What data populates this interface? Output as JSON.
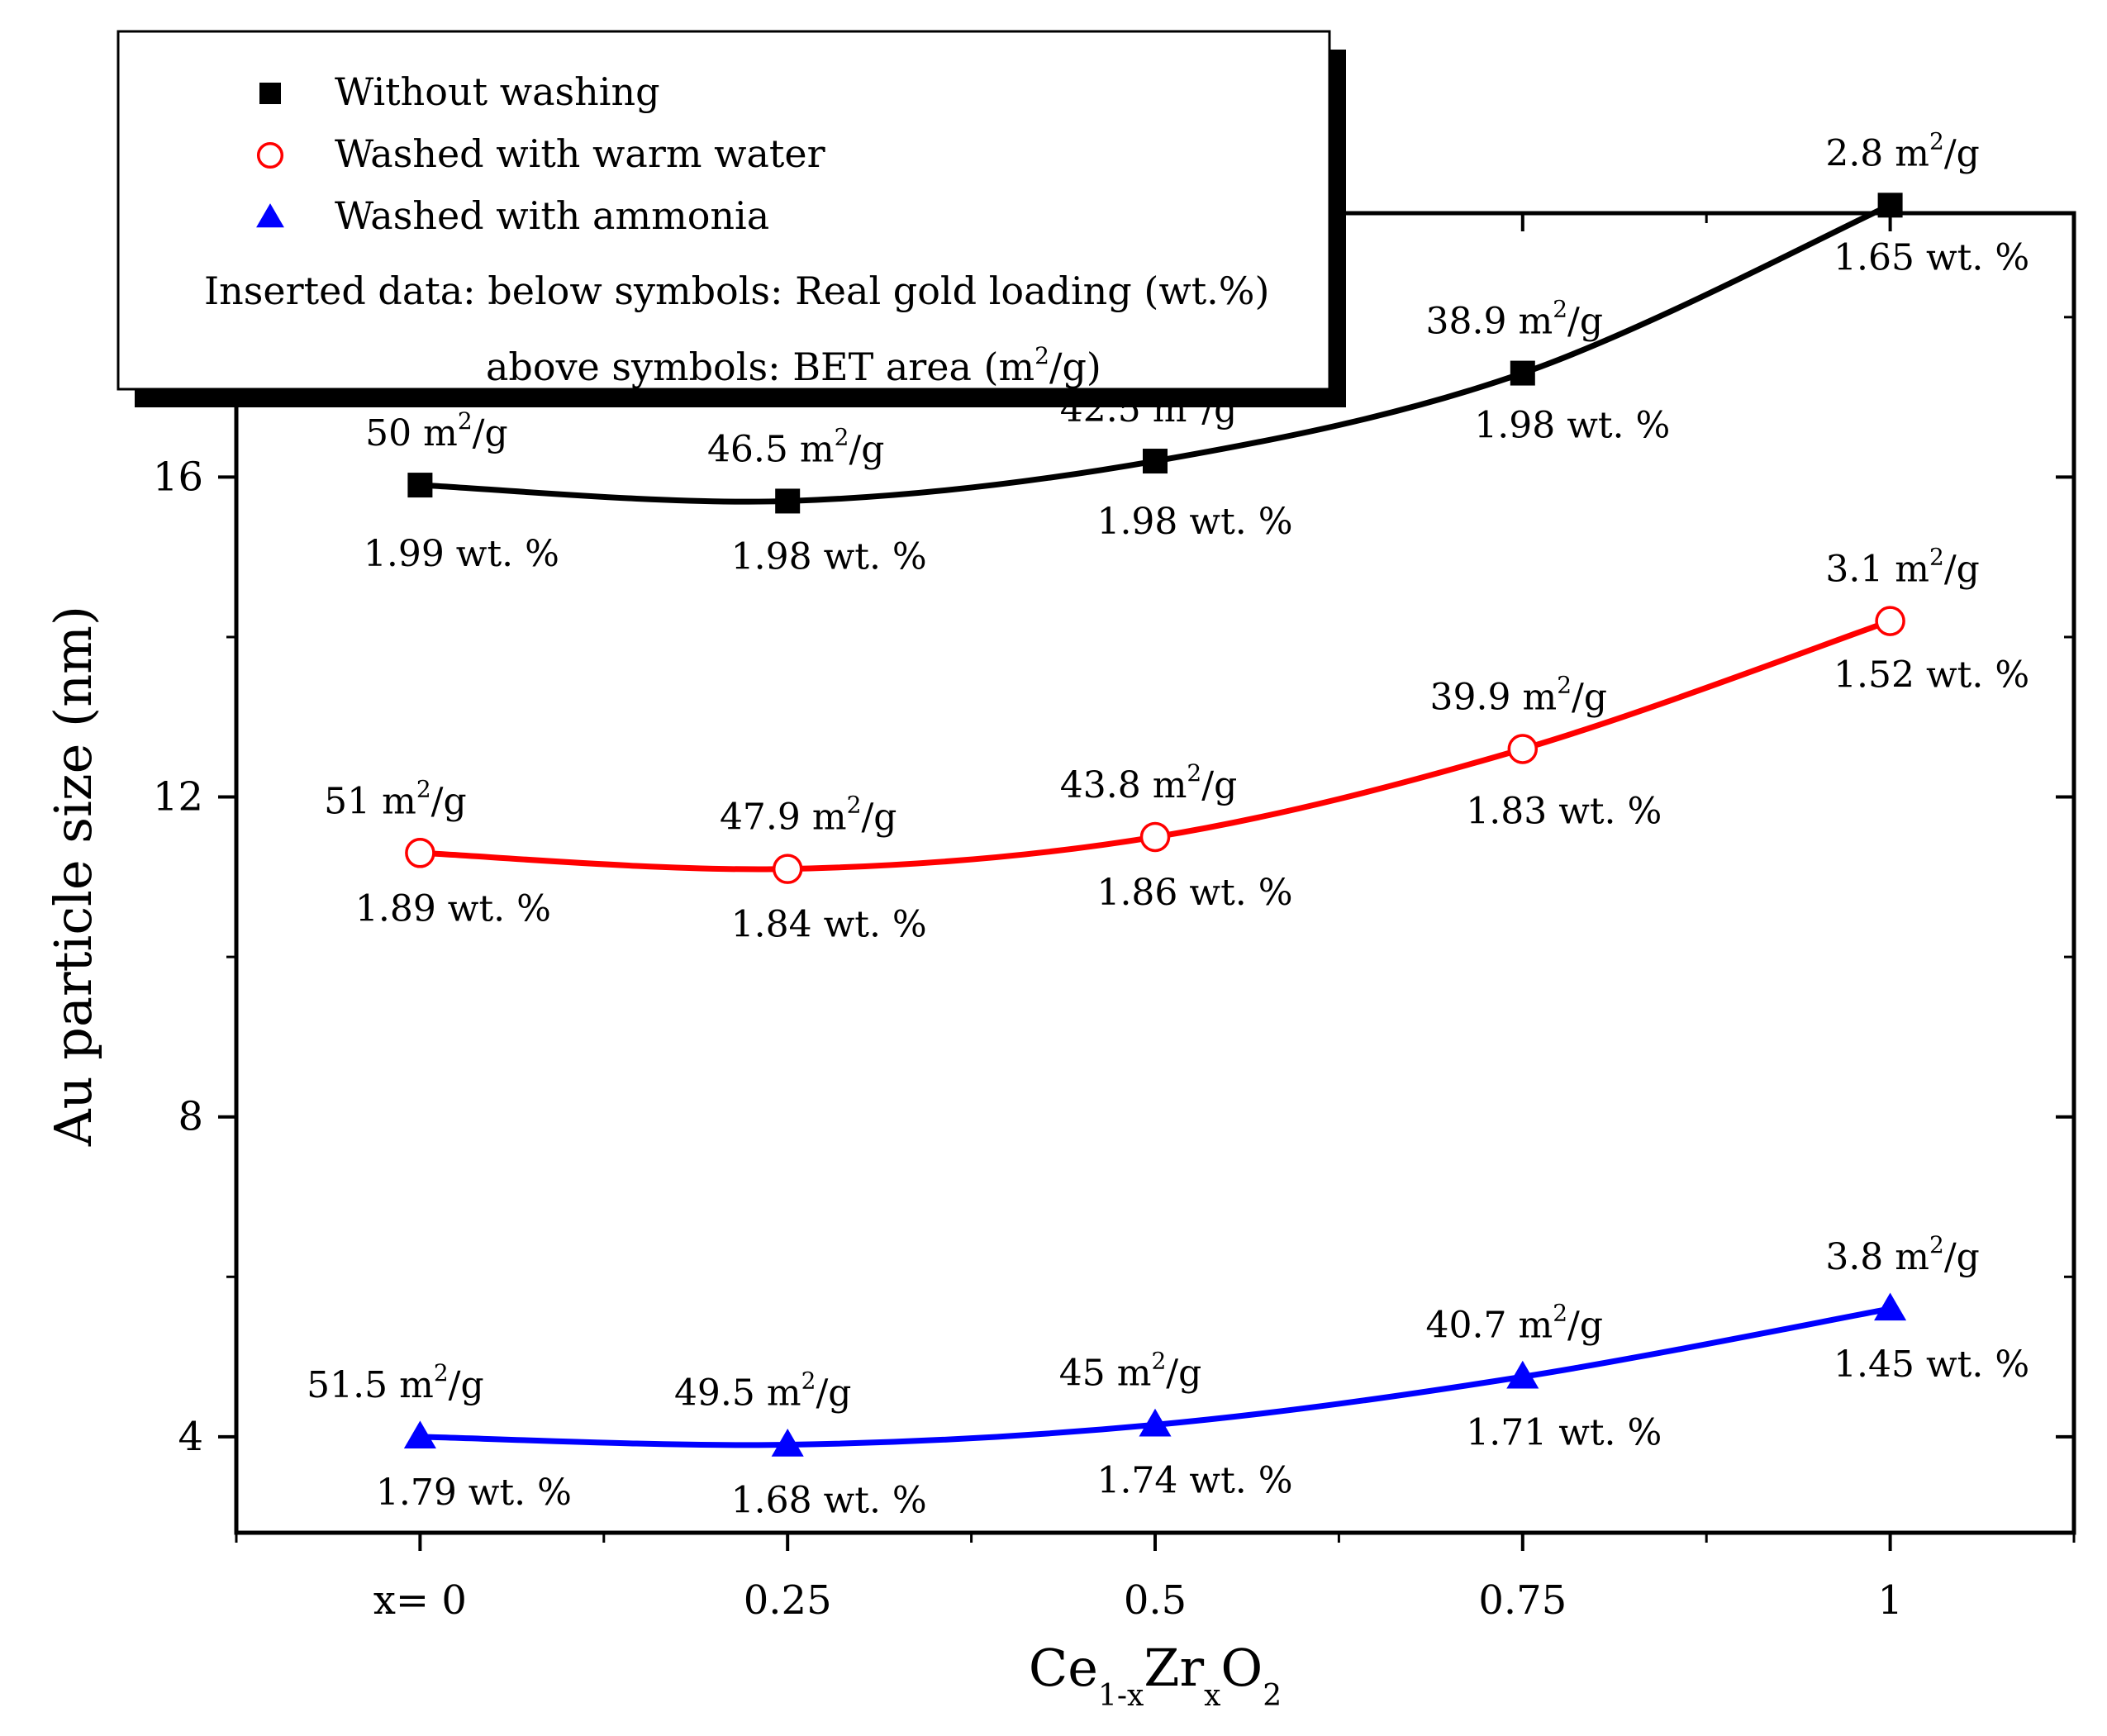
{
  "chart_data": {
    "type": "line",
    "title": "",
    "xlabel": {
      "base": "Ce",
      "sub1": "1-x",
      "mid": "Zr",
      "sub2": "x",
      "end": "O",
      "sub3": "2"
    },
    "ylabel": "Au particle size (nm)",
    "x": [
      0,
      0.25,
      0.5,
      0.75,
      1
    ],
    "x_tick_labels": [
      "x= 0",
      "0.25",
      "0.5",
      "0.75",
      "1"
    ],
    "xlim": [
      -0.125,
      1.125
    ],
    "ylim": [
      2.8,
      19.3
    ],
    "y_ticks": [
      4,
      8,
      12,
      16
    ],
    "y_tick_labels": [
      "4",
      "8",
      "12",
      "16"
    ],
    "series": [
      {
        "name": "Without washing",
        "color": "#000000",
        "marker": "square-filled",
        "values": [
          15.9,
          15.7,
          16.2,
          17.3,
          19.4
        ],
        "bet_labels": [
          "50 m",
          "46.5 m",
          "42.5 m",
          "38.9 m",
          "2.8 m"
        ],
        "loading_labels": [
          "1.99 wt. %",
          "1.98 wt. %",
          "1.98 wt. %",
          "1.98 wt. %",
          "1.65 wt. %"
        ]
      },
      {
        "name": "Washed with warm water",
        "color": "#ff0000",
        "marker": "circle-open",
        "values": [
          11.3,
          11.1,
          11.5,
          12.6,
          14.2
        ],
        "bet_labels": [
          "51 m",
          "47.9 m",
          "43.8 m",
          "39.9 m",
          "3.1 m"
        ],
        "loading_labels": [
          "1.89 wt. %",
          "1.84 wt. %",
          "1.86 wt. %",
          "1.83 wt. %",
          "1.52 wt. %"
        ]
      },
      {
        "name": "Washed with ammonia",
        "color": "#0000ff",
        "marker": "triangle-filled",
        "values": [
          4.0,
          3.9,
          4.15,
          4.75,
          5.6
        ],
        "bet_labels": [
          "51.5 m",
          "49.5 m",
          "45 m",
          "40.7 m",
          "3.8 m"
        ],
        "loading_labels": [
          "1.79 wt. %",
          "1.68 wt. %",
          "1.74 wt. %",
          "1.71 wt. %",
          "1.45 wt. %"
        ]
      }
    ],
    "unit_sup": "2",
    "unit_tail": "/g",
    "legend": {
      "placement": "top-left",
      "note_line1": "Inserted data:  below symbols: Real gold loading (wt.%)",
      "note_line2_head": "above symbols: BET area (m",
      "note_line2_sup": "2",
      "note_line2_tail": "/g)"
    }
  }
}
